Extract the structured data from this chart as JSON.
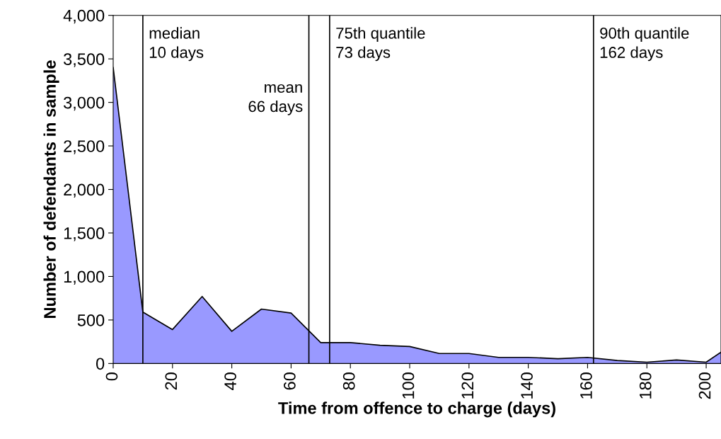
{
  "chart_data": {
    "type": "area",
    "xlabel": "Time from offence to charge (days)",
    "ylabel": "Number of defendants in sample",
    "x": [
      0,
      10,
      20,
      30,
      40,
      50,
      60,
      70,
      80,
      90,
      100,
      110,
      120,
      130,
      140,
      150,
      160,
      170,
      180,
      190,
      200,
      205
    ],
    "series": [
      {
        "color": "#9999ff",
        "values": [
          3400,
          590,
          390,
          770,
          370,
          625,
          580,
          240,
          240,
          210,
          195,
          115,
          115,
          70,
          70,
          55,
          70,
          35,
          15,
          40,
          15,
          130
        ]
      }
    ],
    "xlim": [
      0,
      205
    ],
    "xticks": [
      0,
      20,
      40,
      60,
      80,
      100,
      120,
      140,
      160,
      180,
      200
    ],
    "ylim": [
      0,
      4000
    ],
    "yticks": [
      {
        "value": 0,
        "label": "0"
      },
      {
        "value": 500,
        "label": "500"
      },
      {
        "value": 1000,
        "label": "1,000"
      },
      {
        "value": 1500,
        "label": "1,500"
      },
      {
        "value": 2000,
        "label": "2,000"
      },
      {
        "value": 2500,
        "label": "2,500"
      },
      {
        "value": 3000,
        "label": "3,000"
      },
      {
        "value": 3500,
        "label": "3,500"
      },
      {
        "value": 4000,
        "label": "4,000"
      }
    ],
    "ref_lines": [
      {
        "axis": "x",
        "value": 10,
        "label": "median\n10 days",
        "color": "#000000"
      },
      {
        "axis": "x",
        "value": 66,
        "label": "mean\n66 days",
        "color": "#000000"
      },
      {
        "axis": "x",
        "value": 73,
        "label": "75th quantile\n73 days",
        "color": "#000000"
      },
      {
        "axis": "x",
        "value": 162,
        "label": "90th quantile\n162 days",
        "color": "#000000"
      }
    ],
    "grid": false,
    "legend": false
  }
}
